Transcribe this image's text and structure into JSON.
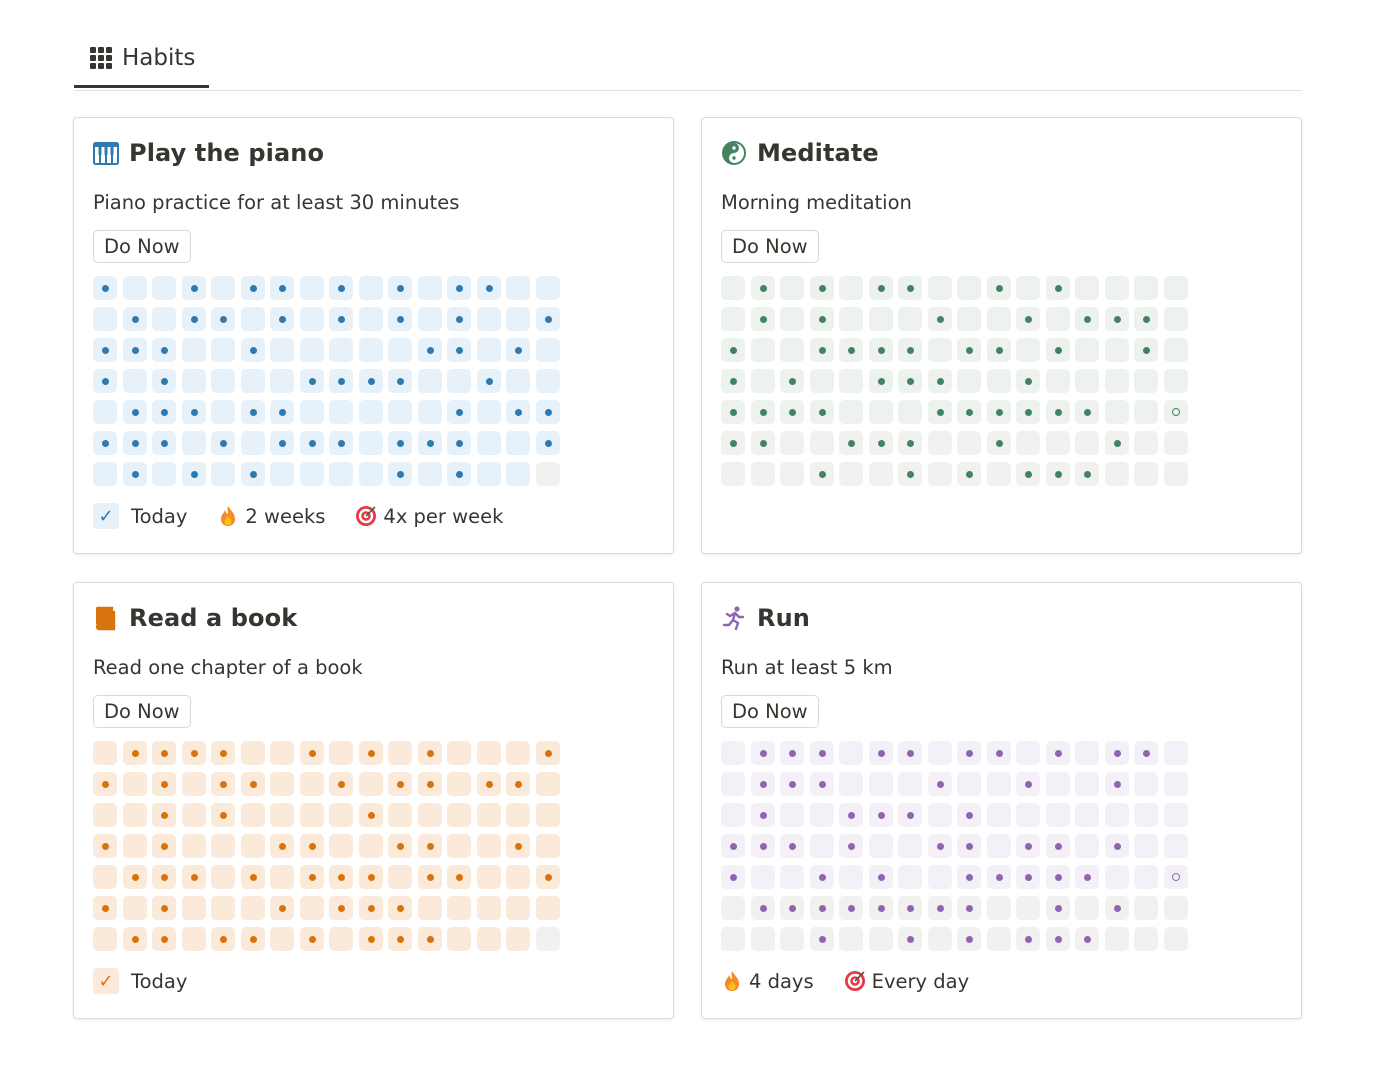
{
  "view_tab": {
    "label": "Habits",
    "icon": "grid-icon"
  },
  "habits": [
    {
      "title": "Play the piano",
      "description": "Piano practice for at least 30 minutes",
      "button": "Do Now",
      "icon": "piano-icon",
      "color": "#2f7ab0",
      "cell_bg": "#e6f1f9",
      "empty_bg": "#f1f1ef",
      "grid": [
        "1001011010101100",
        "0101101010101001",
        "1110010000011010",
        "1010000111100100",
        "0111011000001011",
        "1110101110111001",
        "0101010000101000"
      ],
      "footer": {
        "today": "Today",
        "streak": "2 weeks",
        "goal": "4x per week"
      }
    },
    {
      "title": "Meditate",
      "description": "Morning meditation",
      "button": "Do Now",
      "icon": "yin-yang-icon",
      "color": "#448361",
      "cell_bg": "#eef2ee",
      "empty_bg": "#f1f1ef",
      "grid": [
        "0101011001010000",
        "0101000100101110",
        "1001111011010010",
        "1010011100100000",
        "111100011111100R",
        "1100111001000100",
        "0001001010111000"
      ],
      "footer": {}
    },
    {
      "title": "Read a book",
      "description": "Read one chapter of a book",
      "button": "Do Now",
      "icon": "book-icon",
      "color": "#d9730d",
      "cell_bg": "#fbe9d9",
      "empty_bg": "#f1f1ef",
      "grid": [
        "0111100101010001",
        "1010110010110110",
        "0010100001000000",
        "1010001100110010",
        "0111010111011001",
        "1010001011100000",
        "0110110101110000"
      ],
      "footer": {
        "today": "Today"
      }
    },
    {
      "title": "Run",
      "description": "Run at least 5 km",
      "button": "Do Now",
      "icon": "runner-icon",
      "color": "#9065b0",
      "cell_bg": "#f4f0f7",
      "empty_bg": "#f1f1ef",
      "grid": [
        "0111011011010110",
        "0111000100100100",
        "0100111010000000",
        "1110100110110100",
        "100101001111100R",
        "0111111110010100",
        "0001001010111000"
      ],
      "footer": {
        "streak": "4 days",
        "goal": "Every day"
      }
    }
  ]
}
